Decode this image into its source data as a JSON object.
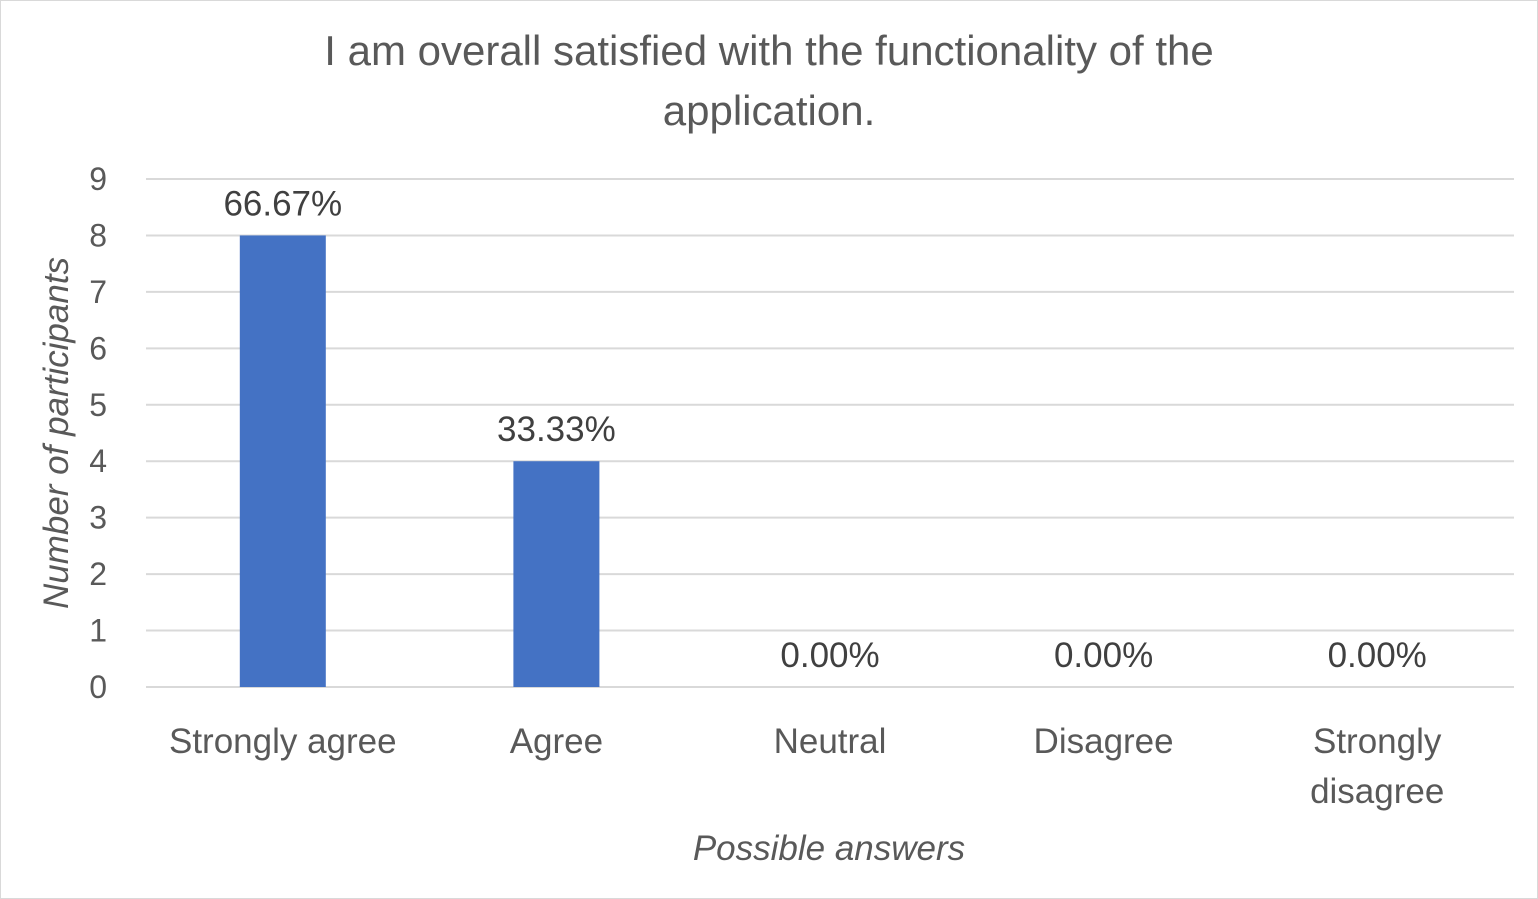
{
  "chart_data": {
    "type": "bar",
    "title_lines": [
      "I am overall satisfied with the functionality of the",
      "application."
    ],
    "xlabel": "Possible answers",
    "ylabel": "Number of participants",
    "ylim": [
      0,
      9
    ],
    "yticks": [
      "0",
      "1",
      "2",
      "3",
      "4",
      "5",
      "6",
      "7",
      "8",
      "9"
    ],
    "categories": [
      [
        "Strongly agree"
      ],
      [
        "Agree"
      ],
      [
        "Neutral"
      ],
      [
        "Disagree"
      ],
      [
        "Strongly",
        "disagree"
      ]
    ],
    "values": [
      8,
      4,
      0,
      0,
      0
    ],
    "data_labels": [
      "66.67%",
      "33.33%",
      "0.00%",
      "0.00%",
      "0.00%"
    ],
    "bar_color": "#4472c4",
    "grid": true,
    "legend": "none"
  }
}
